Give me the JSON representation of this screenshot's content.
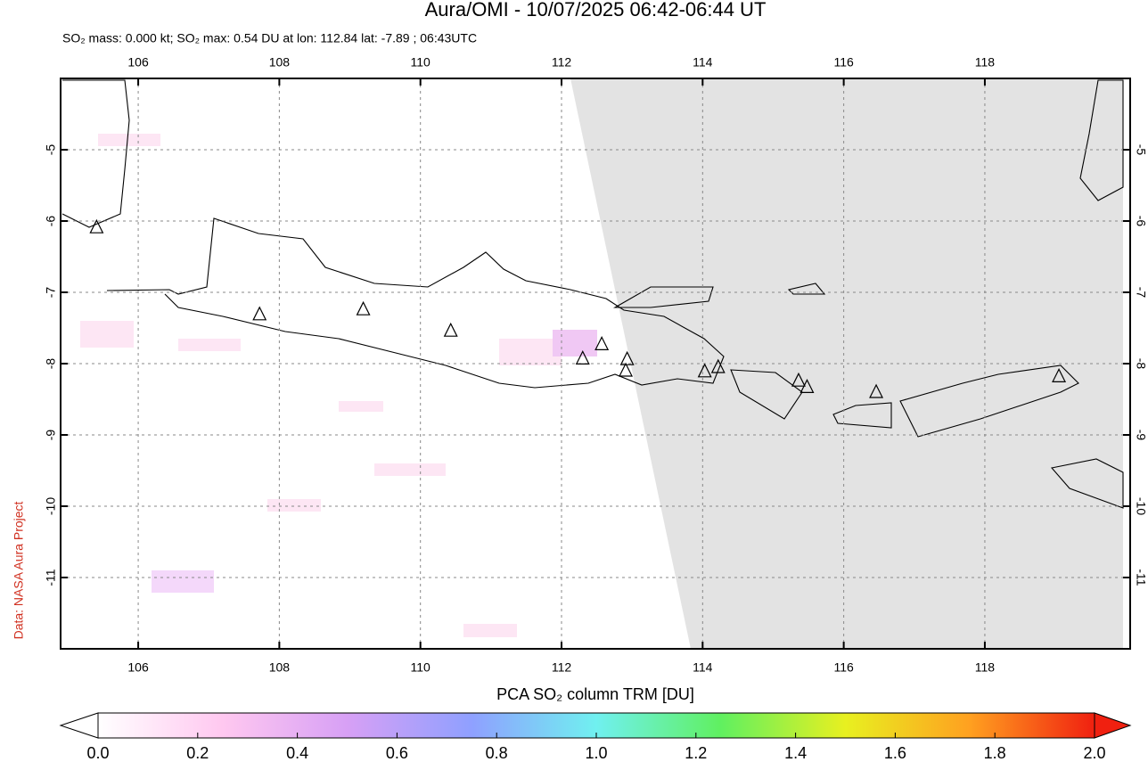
{
  "chart_data": {
    "type": "scatter",
    "title": "Aura/OMI - 10/07/2025 06:42-06:44 UT",
    "subtitle": "SO₂ mass: 0.000 kt; SO₂ max: 0.54 DU at lon: 112.84 lat: -7.89 ; 06:43UTC",
    "source": "Data: NASA Aura Project",
    "xlim": [
      104.9,
      120.06
    ],
    "ylim": [
      -12,
      -4
    ],
    "xticks": [
      106,
      108,
      110,
      112,
      114,
      116,
      118
    ],
    "yticks": [
      -5,
      -6,
      -7,
      -8,
      -9,
      -10,
      -11
    ],
    "grid": true,
    "x": [
      105.41,
      107.72,
      109.19,
      110.43,
      112.3,
      112.57,
      112.93,
      112.91,
      114.03,
      114.22,
      115.36,
      115.48,
      116.46,
      119.05
    ],
    "values": [
      -6.09,
      -7.31,
      -7.24,
      -7.54,
      -7.93,
      -7.73,
      -7.94,
      -8.1,
      -8.11,
      -8.05,
      -8.24,
      -8.33,
      -8.4,
      -8.18
    ],
    "colorbar": {
      "label": "PCA SO₂ column TRM [DU]",
      "lim": [
        0,
        2
      ],
      "ticks": [
        {
          "value": 0,
          "label": "0.0"
        },
        {
          "value": 0.2,
          "label": "0.2"
        },
        {
          "value": 0.4,
          "label": "0.4"
        },
        {
          "value": 0.6,
          "label": "0.6"
        },
        {
          "value": 0.8,
          "label": "0.8"
        },
        {
          "value": 1,
          "label": "1.0"
        },
        {
          "value": 1.2,
          "label": "1.2"
        },
        {
          "value": 1.4,
          "label": "1.4"
        },
        {
          "value": 1.6,
          "label": "1.6"
        },
        {
          "value": 1.8,
          "label": "1.8"
        },
        {
          "value": 2,
          "label": "2.0"
        }
      ],
      "colors": [
        "#ffffff",
        "#ffc8f0",
        "#d7a0f5",
        "#8fa0ff",
        "#70f0f0",
        "#60f060",
        "#e8f020",
        "#ffa020",
        "#f02010"
      ]
    }
  }
}
